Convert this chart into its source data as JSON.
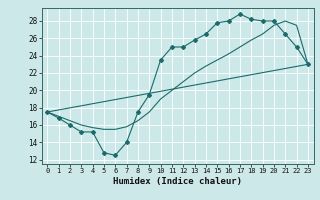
{
  "title": "",
  "xlabel": "Humidex (Indice chaleur)",
  "bg_color": "#cde8e8",
  "grid_color": "#ffffff",
  "line_color": "#1a6b6b",
  "xlim": [
    -0.5,
    23.5
  ],
  "ylim": [
    11.5,
    29.5
  ],
  "xticks": [
    0,
    1,
    2,
    3,
    4,
    5,
    6,
    7,
    8,
    9,
    10,
    11,
    12,
    13,
    14,
    15,
    16,
    17,
    18,
    19,
    20,
    21,
    22,
    23
  ],
  "yticks": [
    12,
    14,
    16,
    18,
    20,
    22,
    24,
    26,
    28
  ],
  "line1_x": [
    0,
    1,
    2,
    3,
    4,
    5,
    6,
    7,
    8,
    9,
    10,
    11,
    12,
    13,
    14,
    15,
    16,
    17,
    18,
    19,
    20,
    21,
    22,
    23
  ],
  "line1_y": [
    17.5,
    16.8,
    16.0,
    15.2,
    15.2,
    12.8,
    12.5,
    14.0,
    17.5,
    19.5,
    23.5,
    25.0,
    25.0,
    25.8,
    26.5,
    27.8,
    28.0,
    28.8,
    28.2,
    28.0,
    28.0,
    26.5,
    25.0,
    23.0
  ],
  "line2_x": [
    0,
    1,
    2,
    3,
    4,
    5,
    6,
    7,
    8,
    9,
    10,
    11,
    12,
    13,
    14,
    15,
    16,
    17,
    18,
    19,
    20,
    21,
    22,
    23
  ],
  "line2_y": [
    17.5,
    17.0,
    16.5,
    16.0,
    15.7,
    15.5,
    15.5,
    15.8,
    16.5,
    17.5,
    19.0,
    20.0,
    21.0,
    22.0,
    22.8,
    23.5,
    24.2,
    25.0,
    25.8,
    26.5,
    27.5,
    28.0,
    27.5,
    23.0
  ],
  "line3_x": [
    0,
    23
  ],
  "line3_y": [
    17.5,
    23.0
  ]
}
